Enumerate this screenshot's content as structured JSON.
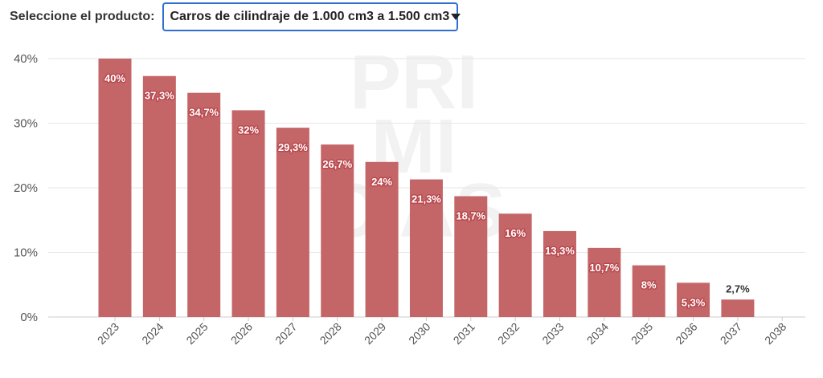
{
  "selector": {
    "label": "Seleccione el producto:",
    "value": "Carros de cilindraje de 1.000 cm3 a 1.500 cm3"
  },
  "watermark": [
    "PRI",
    "MI",
    "CIAS"
  ],
  "colors": {
    "bar": "#c46667",
    "grid": "#e6e6e6",
    "selector_border": "#2f6fcf"
  },
  "chart_data": {
    "type": "bar",
    "categories": [
      "2023",
      "2024",
      "2025",
      "2026",
      "2027",
      "2028",
      "2029",
      "2030",
      "2031",
      "2032",
      "2033",
      "2034",
      "2035",
      "2036",
      "2037",
      "2038"
    ],
    "values": [
      40,
      37.3,
      34.7,
      32,
      29.3,
      26.7,
      24,
      21.3,
      18.7,
      16,
      13.3,
      10.7,
      8,
      5.3,
      2.7,
      0
    ],
    "data_labels": [
      "40%",
      "37,3%",
      "34,7%",
      "32%",
      "29,3%",
      "26,7%",
      "24%",
      "21,3%",
      "18,7%",
      "16%",
      "13,3%",
      "10,7%",
      "8%",
      "5,3%",
      "2,7%",
      ""
    ],
    "y_ticks": [
      0,
      10,
      20,
      30,
      40
    ],
    "y_tick_labels": [
      "0%",
      "10%",
      "20%",
      "30%",
      "40%"
    ],
    "ylim": [
      0,
      40
    ],
    "grid": true,
    "legend": "none"
  }
}
